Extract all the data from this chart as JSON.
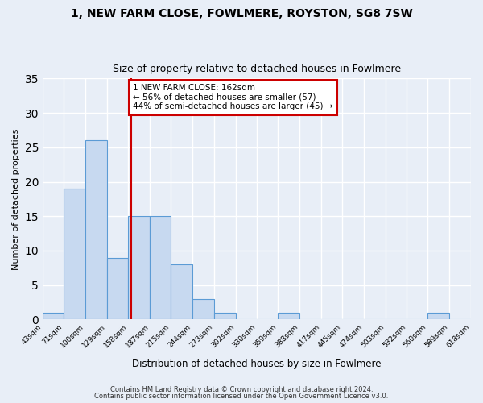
{
  "title": "1, NEW FARM CLOSE, FOWLMERE, ROYSTON, SG8 7SW",
  "subtitle": "Size of property relative to detached houses in Fowlmere",
  "xlabel": "Distribution of detached houses by size in Fowlmere",
  "ylabel": "Number of detached properties",
  "bin_edges": [
    43,
    71,
    100,
    129,
    158,
    187,
    215,
    244,
    273,
    302,
    330,
    359,
    388,
    417,
    445,
    474,
    503,
    532,
    560,
    589,
    618
  ],
  "counts": [
    1,
    19,
    26,
    9,
    15,
    15,
    8,
    3,
    1,
    0,
    0,
    1,
    0,
    0,
    0,
    0,
    0,
    0,
    1,
    0
  ],
  "bar_facecolor": "#c7d9f0",
  "bar_edgecolor": "#5b9bd5",
  "vline_x": 162,
  "vline_color": "#cc0000",
  "ylim": [
    0,
    35
  ],
  "yticks": [
    0,
    5,
    10,
    15,
    20,
    25,
    30,
    35
  ],
  "annotation_title": "1 NEW FARM CLOSE: 162sqm",
  "annotation_line1": "← 56% of detached houses are smaller (57)",
  "annotation_line2": "44% of semi-detached houses are larger (45) →",
  "annotation_box_color": "#cc0000",
  "footer1": "Contains HM Land Registry data © Crown copyright and database right 2024.",
  "footer2": "Contains public sector information licensed under the Open Government Licence v3.0.",
  "background_color": "#e8eef7",
  "plot_background_color": "#e8eef7",
  "grid_color": "#ffffff"
}
